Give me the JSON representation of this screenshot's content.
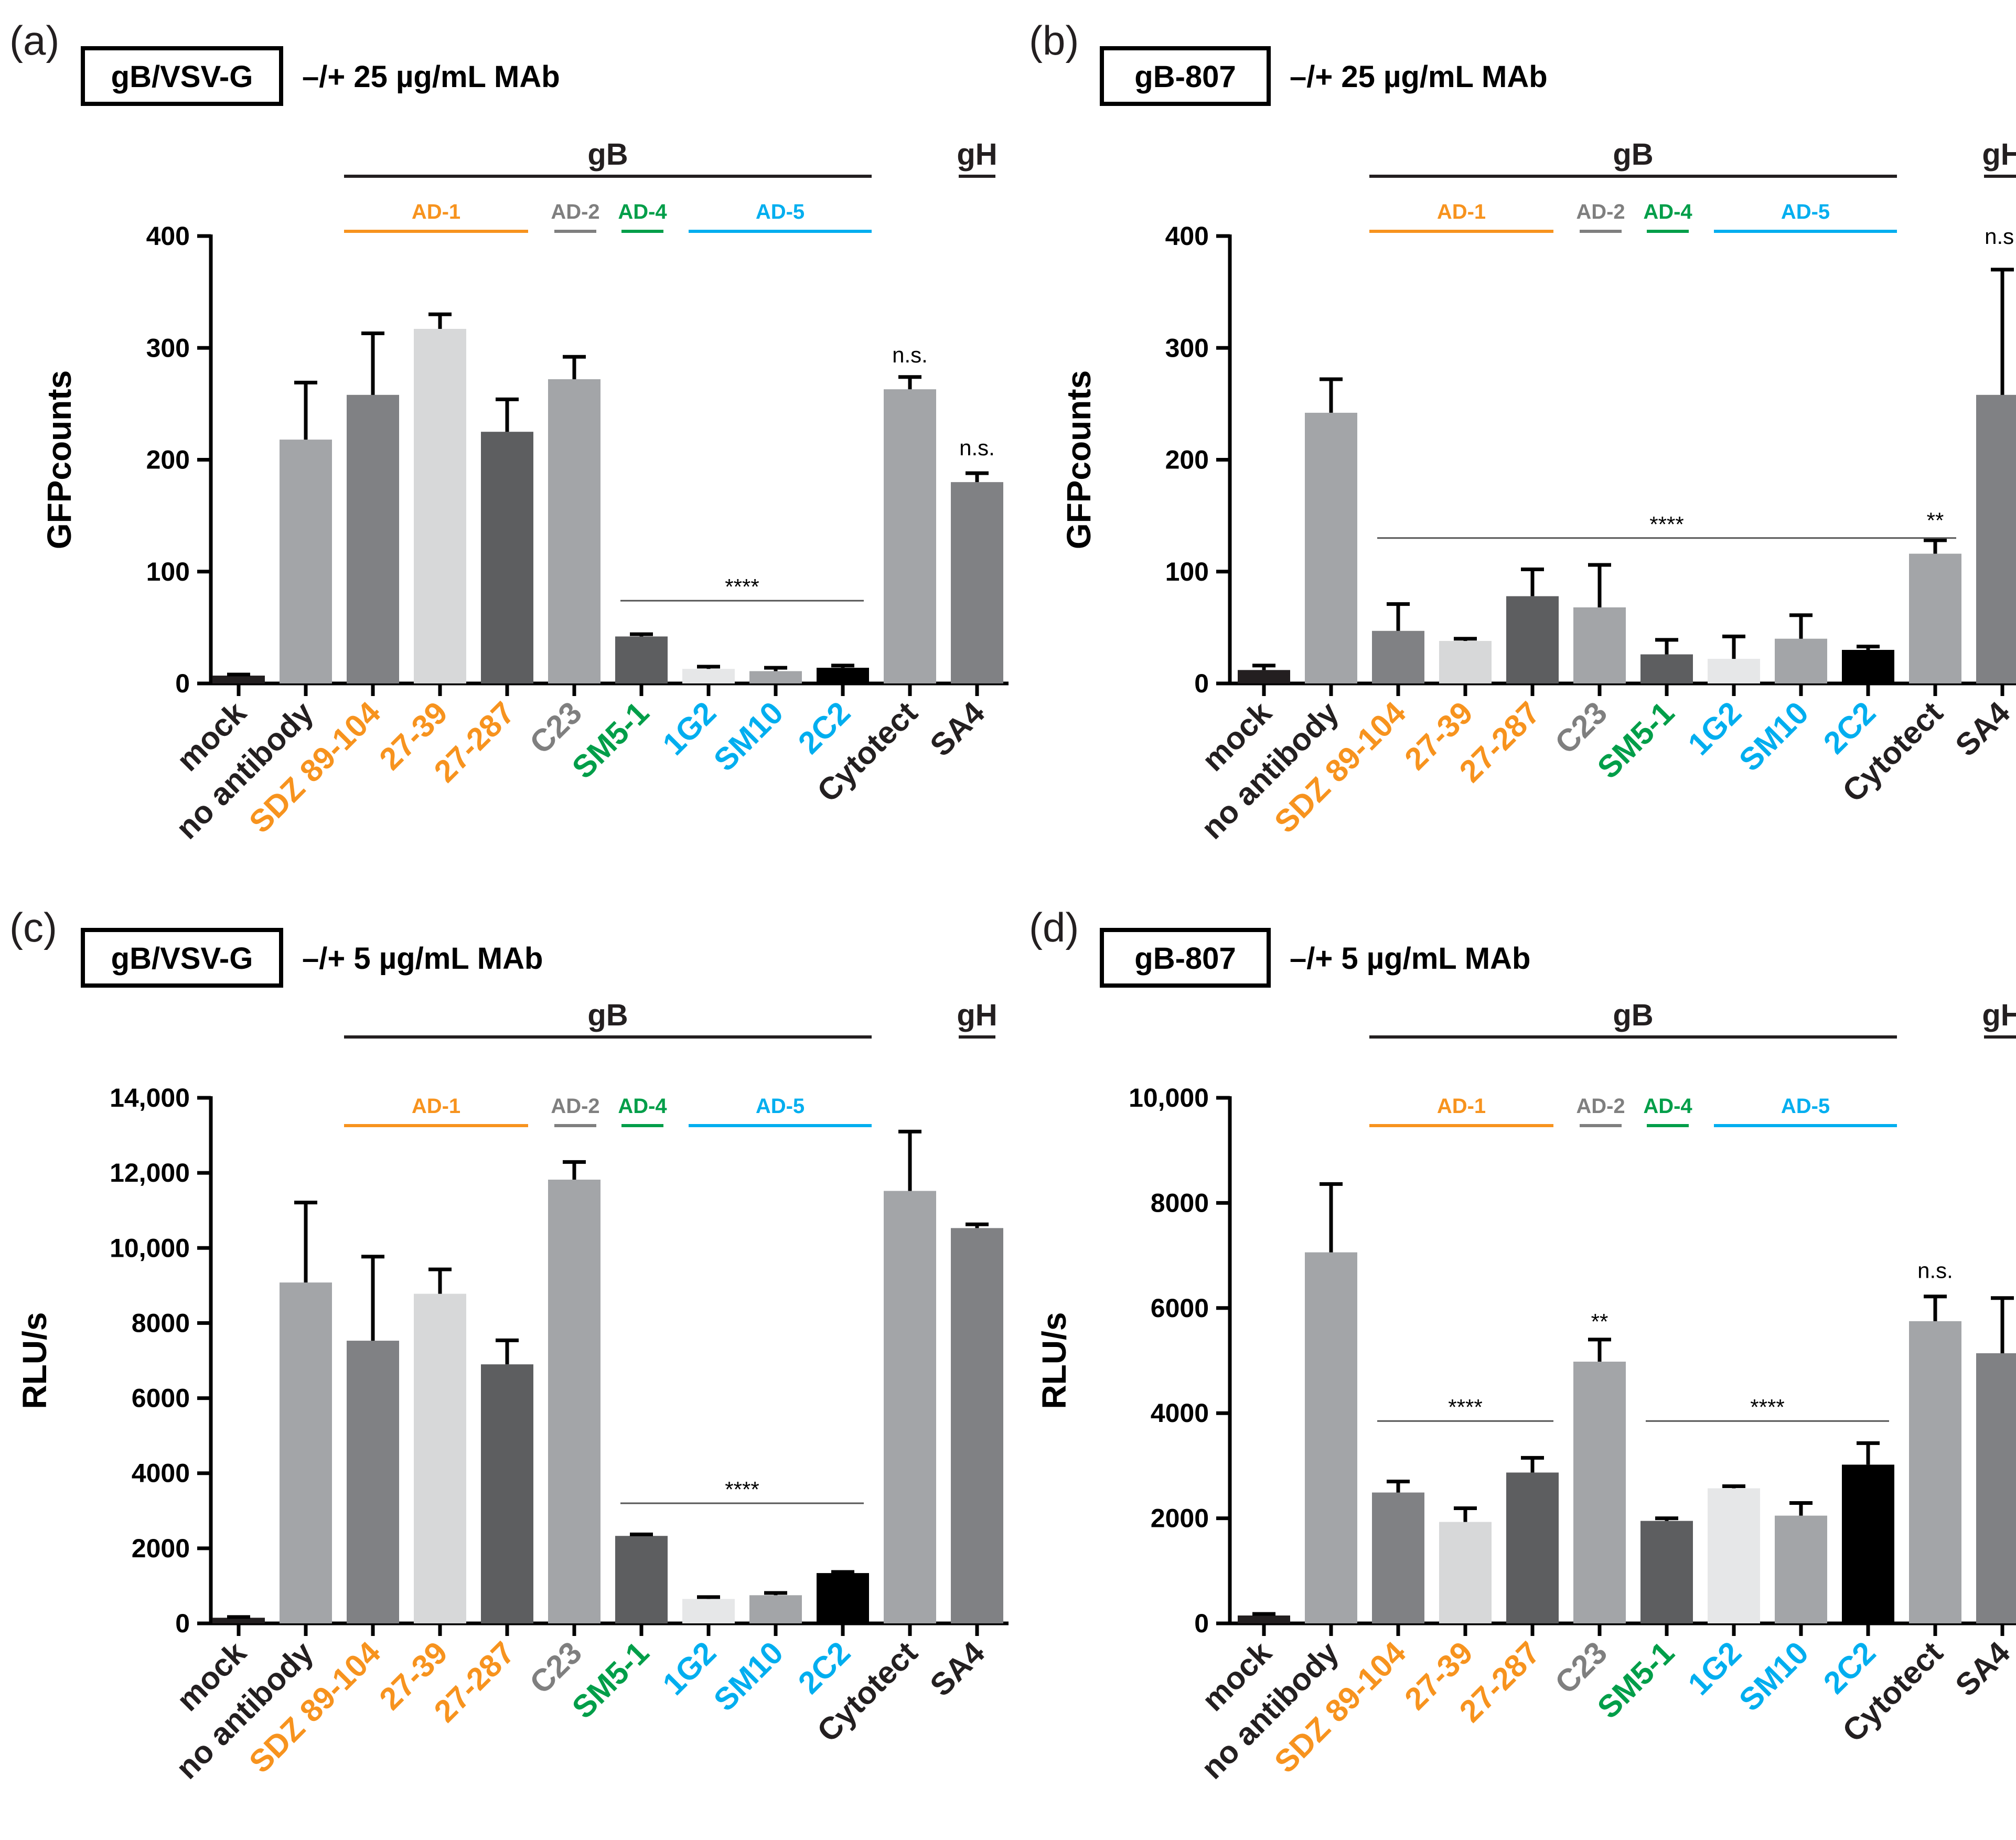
{
  "colors": {
    "orange": "#f7931e",
    "gray_label": "#7f7f7f",
    "green": "#009e49",
    "blue": "#00aeef",
    "black": "#231f20",
    "axis": "#000000"
  },
  "categories": [
    {
      "label": "mock",
      "color": "#231f20"
    },
    {
      "label": "no antibody",
      "color": "#231f20"
    },
    {
      "label": "SDZ 89-104",
      "color": "#f7931e"
    },
    {
      "label": "27-39",
      "color": "#f7931e"
    },
    {
      "label": "27-287",
      "color": "#f7931e"
    },
    {
      "label": "C23",
      "color": "#7f7f7f"
    },
    {
      "label": "SM5-1",
      "color": "#009e49"
    },
    {
      "label": "1G2",
      "color": "#00aeef"
    },
    {
      "label": "SM10",
      "color": "#00aeef"
    },
    {
      "label": "2C2",
      "color": "#00aeef"
    },
    {
      "label": "Cytotect",
      "color": "#231f20"
    },
    {
      "label": "SA4",
      "color": "#231f20"
    }
  ],
  "bar_fills": [
    "#231f20",
    "#a3a5a8",
    "#808184",
    "#d7d8d9",
    "#5d5e60",
    "#a3a5a8",
    "#5d5e60",
    "#e6e7e8",
    "#a3a5a8",
    "#000000",
    "#a3a5a8",
    "#808184"
  ],
  "bar_fills_d": [
    "#231f20",
    "#a3a5a8",
    "#808184",
    "#d7d8d9",
    "#5d5e60",
    "#a3a5a8",
    "#5d5e60",
    "#e6e7e8",
    "#a3a5a8",
    "#000000",
    "#a3a5a8",
    "#808184"
  ],
  "groups": {
    "gB": "gB",
    "gH": "gH",
    "AD1": "AD-1",
    "AD2": "AD-2",
    "AD4": "AD-4",
    "AD5": "AD-5"
  },
  "chart_data": [
    {
      "panel": "(a)",
      "type": "bar",
      "box_label": "gB/VSV-G",
      "condition": "–/+ 25 µg/mL MAb",
      "ylabel": "GFPcounts",
      "ylim": [
        0,
        400
      ],
      "yticks": [
        0,
        100,
        200,
        300,
        400
      ],
      "ytick_labels": [
        "0",
        "100",
        "200",
        "300",
        "400"
      ],
      "values": [
        7,
        218,
        258,
        317,
        225,
        272,
        42,
        13,
        11,
        14,
        263,
        180
      ],
      "errors": [
        1,
        51,
        55,
        13,
        29,
        20,
        2,
        2,
        3,
        2,
        11,
        8
      ],
      "annotations": [
        {
          "text": "****",
          "from": 6,
          "to": 9,
          "y": 74
        },
        {
          "text": "n.s.",
          "at": 10,
          "y": 287
        },
        {
          "text": "n.s.",
          "at": 11,
          "y": 204
        }
      ]
    },
    {
      "panel": "(b)",
      "type": "bar",
      "box_label": "gB-807",
      "condition": "–/+ 25 µg/mL MAb",
      "ylabel": "GFPcounts",
      "ylim": [
        0,
        400
      ],
      "yticks": [
        0,
        100,
        200,
        300,
        400
      ],
      "ytick_labels": [
        "0",
        "100",
        "200",
        "300",
        "400"
      ],
      "values": [
        12,
        242,
        47,
        38,
        78,
        68,
        26,
        22,
        40,
        30,
        116,
        258
      ],
      "errors": [
        4,
        30,
        24,
        2,
        24,
        38,
        13,
        20,
        21,
        3,
        12,
        112
      ],
      "annotations": [
        {
          "text": "****",
          "from": 2,
          "to": 10,
          "y": 130
        },
        {
          "text": "**",
          "at": 10,
          "y": 139
        },
        {
          "text": "n.s.",
          "at": 11,
          "y": 393
        }
      ]
    },
    {
      "panel": "(c)",
      "type": "bar",
      "box_label": "gB/VSV-G",
      "condition": "–/+ 5 µg/mL MAb",
      "ylabel": "RLU/s",
      "ylim": [
        0,
        14000
      ],
      "yticks": [
        0,
        2000,
        4000,
        6000,
        8000,
        10000,
        12000,
        14000
      ],
      "ytick_labels": [
        "0",
        "2000",
        "4000",
        "6000",
        "8000",
        "10,000",
        "12,000",
        "14,000"
      ],
      "values": [
        150,
        9080,
        7530,
        8780,
        6900,
        11820,
        2330,
        650,
        750,
        1340,
        11520,
        10530
      ],
      "errors": [
        20,
        2130,
        2240,
        650,
        640,
        470,
        40,
        50,
        60,
        30,
        1580,
        100
      ],
      "annotations": [
        {
          "text": "****",
          "from": 6,
          "to": 9,
          "y": 3200
        }
      ]
    },
    {
      "panel": "(d)",
      "type": "bar",
      "box_label": "gB-807",
      "condition": "–/+ 5 µg/mL MAb",
      "ylabel": "RLU/s",
      "ylim": [
        0,
        10000
      ],
      "yticks": [
        0,
        2000,
        4000,
        6000,
        8000,
        10000
      ],
      "ytick_labels": [
        "0",
        "2000",
        "4000",
        "6000",
        "8000",
        "10,000"
      ],
      "values": [
        150,
        7060,
        2490,
        1930,
        2870,
        4980,
        1950,
        2570,
        2050,
        3020,
        5750,
        5140
      ],
      "errors": [
        30,
        1300,
        210,
        260,
        280,
        420,
        50,
        40,
        240,
        410,
        470,
        1050
      ],
      "annotations": [
        {
          "text": "****",
          "from": 2,
          "to": 4,
          "y": 3850
        },
        {
          "text": "**",
          "at": 5,
          "y": 5600
        },
        {
          "text": "****",
          "from": 6,
          "to": 9,
          "y": 3850
        },
        {
          "text": "n.s.",
          "at": 10,
          "y": 6570
        }
      ]
    }
  ]
}
